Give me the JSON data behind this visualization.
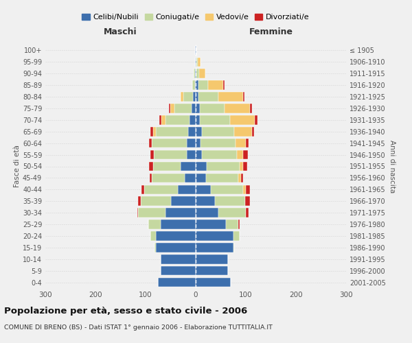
{
  "age_groups_bottom_to_top": [
    "0-4",
    "5-9",
    "10-14",
    "15-19",
    "20-24",
    "25-29",
    "30-34",
    "35-39",
    "40-44",
    "45-49",
    "50-54",
    "55-59",
    "60-64",
    "65-69",
    "70-74",
    "75-79",
    "80-84",
    "85-89",
    "90-94",
    "95-99",
    "100+"
  ],
  "birth_years_bottom_to_top": [
    "2001-2005",
    "1996-2000",
    "1991-1995",
    "1986-1990",
    "1981-1985",
    "1976-1980",
    "1971-1975",
    "1966-1970",
    "1961-1965",
    "1956-1960",
    "1951-1955",
    "1946-1950",
    "1941-1945",
    "1936-1940",
    "1931-1935",
    "1926-1930",
    "1921-1925",
    "1916-1920",
    "1911-1915",
    "1906-1910",
    "≤ 1905"
  ],
  "colors": {
    "celibi": "#3d6fad",
    "coniugati": "#c5d8a0",
    "vedovi": "#f5c86e",
    "divorziati": "#cc2222"
  },
  "maschi": {
    "celibi": [
      75,
      70,
      70,
      80,
      80,
      70,
      60,
      50,
      35,
      22,
      30,
      18,
      18,
      15,
      12,
      8,
      5,
      2,
      2,
      1,
      1
    ],
    "coniugati": [
      0,
      0,
      0,
      2,
      10,
      25,
      55,
      60,
      68,
      65,
      55,
      65,
      70,
      65,
      48,
      35,
      20,
      5,
      2,
      0,
      0
    ],
    "vedovi": [
      0,
      0,
      0,
      0,
      0,
      0,
      0,
      0,
      0,
      0,
      0,
      0,
      0,
      5,
      8,
      8,
      5,
      0,
      0,
      0,
      0
    ],
    "divorziati": [
      0,
      0,
      0,
      0,
      0,
      0,
      2,
      5,
      5,
      5,
      8,
      8,
      5,
      5,
      5,
      2,
      0,
      0,
      0,
      0,
      0
    ]
  },
  "femmine": {
    "celibi": [
      70,
      65,
      65,
      75,
      75,
      60,
      45,
      38,
      30,
      20,
      22,
      12,
      10,
      12,
      8,
      8,
      5,
      5,
      2,
      2,
      1
    ],
    "coniugati": [
      0,
      0,
      0,
      2,
      12,
      25,
      55,
      60,
      65,
      65,
      65,
      70,
      70,
      65,
      60,
      50,
      40,
      20,
      5,
      2,
      0
    ],
    "vedovi": [
      0,
      0,
      0,
      0,
      0,
      0,
      0,
      0,
      5,
      5,
      8,
      12,
      20,
      35,
      50,
      50,
      50,
      30,
      12,
      5,
      0
    ],
    "divorziati": [
      0,
      0,
      0,
      0,
      0,
      2,
      5,
      10,
      8,
      5,
      8,
      10,
      5,
      5,
      5,
      5,
      2,
      2,
      0,
      0,
      0
    ]
  },
  "title": "Popolazione per età, sesso e stato civile - 2006",
  "subtitle": "COMUNE DI BRENO (BS) - Dati ISTAT 1° gennaio 2006 - Elaborazione TUTTITALIA.IT",
  "xlabel_maschi": "Maschi",
  "xlabel_femmine": "Femmine",
  "ylabel_left": "Fasce di età",
  "ylabel_right": "Anni di nascita",
  "xlim": 300,
  "legend_labels": [
    "Celibi/Nubili",
    "Coniugati/e",
    "Vedovi/e",
    "Divorziati/e"
  ],
  "background_color": "#f0f0f0"
}
